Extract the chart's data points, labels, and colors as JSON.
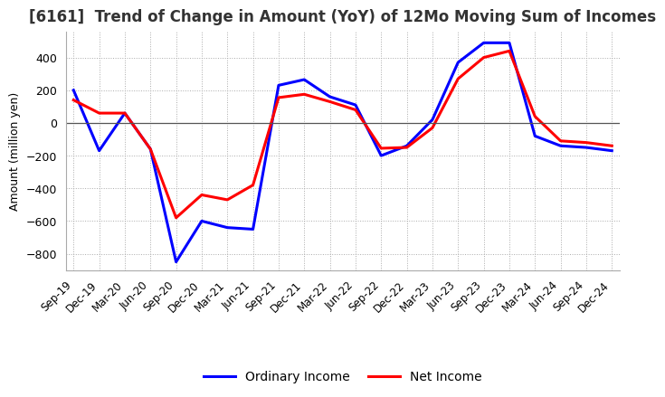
{
  "title": "[6161]  Trend of Change in Amount (YoY) of 12Mo Moving Sum of Incomes",
  "ylabel": "Amount (million yen)",
  "x_labels": [
    "Sep-19",
    "Dec-19",
    "Mar-20",
    "Jun-20",
    "Sep-20",
    "Dec-20",
    "Mar-21",
    "Jun-21",
    "Sep-21",
    "Dec-21",
    "Mar-22",
    "Jun-22",
    "Sep-22",
    "Dec-22",
    "Mar-23",
    "Jun-23",
    "Sep-23",
    "Dec-23",
    "Mar-24",
    "Jun-24",
    "Sep-24",
    "Dec-24"
  ],
  "ordinary_income": [
    200,
    -170,
    60,
    -160,
    -850,
    -600,
    -640,
    -650,
    230,
    265,
    160,
    110,
    -200,
    -140,
    20,
    370,
    490,
    490,
    -80,
    -140,
    -150,
    -170
  ],
  "net_income": [
    140,
    60,
    60,
    -160,
    -580,
    -440,
    -470,
    -380,
    155,
    175,
    130,
    80,
    -155,
    -150,
    -30,
    270,
    400,
    440,
    40,
    -110,
    -120,
    -140
  ],
  "ordinary_color": "#0000ff",
  "net_color": "#ff0000",
  "ylim": [
    -900,
    560
  ],
  "yticks": [
    -800,
    -600,
    -400,
    -200,
    0,
    200,
    400
  ],
  "bg_color": "#ffffff",
  "grid_color": "#aaaaaa",
  "title_fontsize": 12,
  "title_fontweight": "bold"
}
